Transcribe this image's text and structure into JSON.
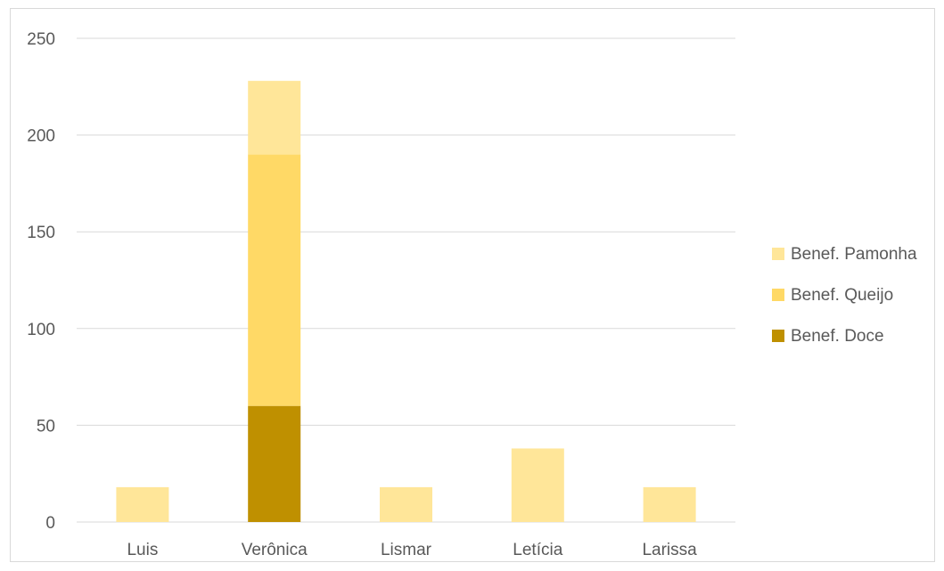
{
  "chart_data": {
    "type": "bar",
    "stacked": true,
    "categories": [
      "Luis",
      "Verônica",
      "Lismar",
      "Letícia",
      "Larissa"
    ],
    "series": [
      {
        "name": "Benef. Doce",
        "values": [
          0,
          60,
          0,
          0,
          0
        ],
        "color": "#bf9000"
      },
      {
        "name": "Benef. Queijo",
        "values": [
          0,
          130,
          0,
          0,
          0
        ],
        "color": "#ffd966"
      },
      {
        "name": "Benef. Pamonha",
        "values": [
          18,
          38,
          18,
          38,
          18
        ],
        "color": "#ffe699"
      }
    ],
    "legend_order": [
      "Benef. Pamonha",
      "Benef. Queijo",
      "Benef. Doce"
    ],
    "ylim": [
      0,
      250
    ],
    "yticks": [
      "0",
      "50",
      "100",
      "150",
      "200",
      "250"
    ],
    "grid": true,
    "legend_position": "right",
    "title": "",
    "xlabel": "",
    "ylabel": ""
  }
}
